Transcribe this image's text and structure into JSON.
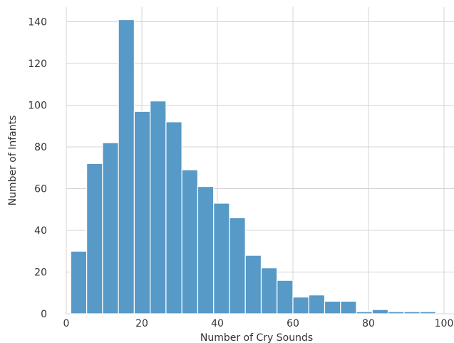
{
  "chart_data": {
    "type": "bar",
    "title": "",
    "xlabel": "Number of Cry Sounds",
    "ylabel": "Number of Infants",
    "xlim": [
      0,
      100
    ],
    "ylim": [
      0,
      147
    ],
    "x_ticks": [
      0,
      20,
      40,
      60,
      80,
      100
    ],
    "y_ticks": [
      0,
      20,
      40,
      60,
      80,
      100,
      120,
      140
    ],
    "grid": true,
    "bar_color": "#5799c7",
    "bins": [
      {
        "start": 1.2,
        "end": 5.4,
        "count": 30
      },
      {
        "start": 5.4,
        "end": 9.6,
        "count": 72
      },
      {
        "start": 9.6,
        "end": 13.8,
        "count": 82
      },
      {
        "start": 13.8,
        "end": 18.0,
        "count": 141
      },
      {
        "start": 18.0,
        "end": 22.2,
        "count": 97
      },
      {
        "start": 22.2,
        "end": 26.4,
        "count": 102
      },
      {
        "start": 26.4,
        "end": 30.6,
        "count": 92
      },
      {
        "start": 30.6,
        "end": 34.8,
        "count": 69
      },
      {
        "start": 34.8,
        "end": 39.0,
        "count": 61
      },
      {
        "start": 39.0,
        "end": 43.2,
        "count": 53
      },
      {
        "start": 43.2,
        "end": 47.4,
        "count": 46
      },
      {
        "start": 47.4,
        "end": 51.6,
        "count": 28
      },
      {
        "start": 51.6,
        "end": 55.8,
        "count": 22
      },
      {
        "start": 55.8,
        "end": 60.0,
        "count": 16
      },
      {
        "start": 60.0,
        "end": 64.2,
        "count": 8
      },
      {
        "start": 64.2,
        "end": 68.4,
        "count": 9
      },
      {
        "start": 68.4,
        "end": 72.6,
        "count": 6
      },
      {
        "start": 72.6,
        "end": 76.8,
        "count": 6
      },
      {
        "start": 76.8,
        "end": 81.0,
        "count": 1
      },
      {
        "start": 81.0,
        "end": 85.2,
        "count": 2
      },
      {
        "start": 85.2,
        "end": 89.4,
        "count": 1
      },
      {
        "start": 89.4,
        "end": 93.6,
        "count": 1
      },
      {
        "start": 93.6,
        "end": 97.8,
        "count": 1
      }
    ]
  }
}
